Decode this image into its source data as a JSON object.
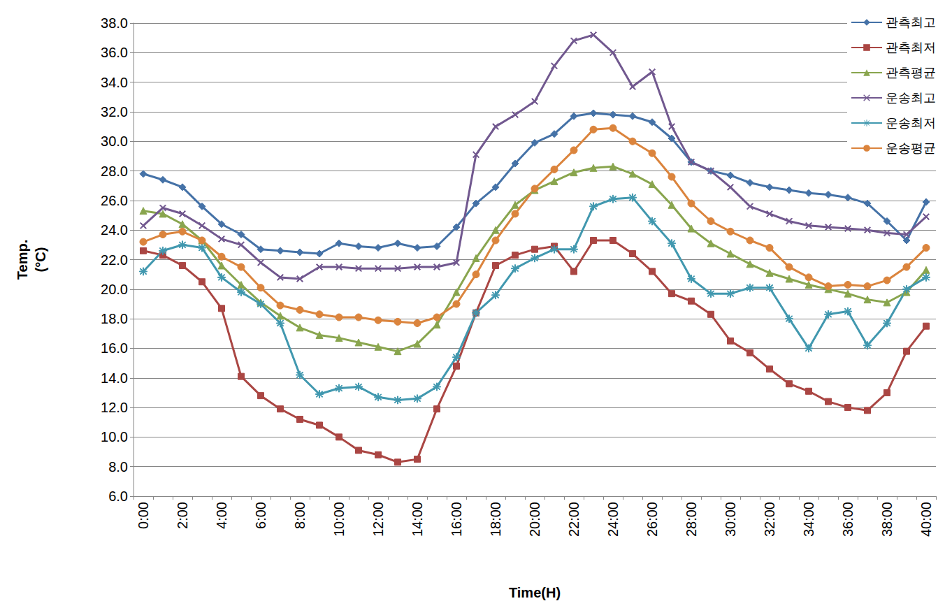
{
  "chart_data": {
    "type": "line",
    "x_label": "Time(H)",
    "y_label": "Temp.\n(°C)",
    "categories": [
      "0:00",
      null,
      "2:00",
      null,
      "4:00",
      null,
      "6:00",
      null,
      "8:00",
      null,
      "10:00",
      null,
      "12:00",
      null,
      "14:00",
      null,
      "16:00",
      null,
      "18:00",
      null,
      "20:00",
      null,
      "22:00",
      null,
      "24:00",
      null,
      "26:00",
      null,
      "28:00",
      null,
      "30:00",
      null,
      "32:00",
      null,
      "34:00",
      null,
      "36:00",
      null,
      "38:00",
      null,
      "40:00"
    ],
    "series": [
      {
        "name": "관측최고",
        "color": "#4572A7",
        "marker": "diamond",
        "values": [
          27.8,
          27.4,
          26.9,
          25.6,
          24.4,
          23.7,
          22.7,
          22.6,
          22.5,
          22.4,
          23.1,
          22.9,
          22.8,
          23.1,
          22.8,
          22.9,
          24.2,
          25.8,
          26.9,
          28.5,
          29.9,
          30.5,
          31.7,
          31.9,
          31.8,
          31.7,
          31.3,
          30.2,
          28.6,
          28.0,
          27.7,
          27.2,
          26.9,
          26.7,
          26.5,
          26.4,
          26.2,
          25.8,
          24.6,
          23.3,
          25.9
        ]
      },
      {
        "name": "관측최저",
        "color": "#AA4643",
        "marker": "square",
        "values": [
          22.6,
          22.3,
          21.6,
          20.5,
          18.7,
          14.1,
          12.8,
          11.9,
          11.2,
          10.8,
          10.0,
          9.1,
          8.8,
          8.3,
          8.5,
          11.9,
          14.8,
          18.4,
          21.6,
          22.3,
          22.7,
          22.9,
          21.2,
          23.3,
          23.3,
          22.4,
          21.2,
          19.7,
          19.2,
          18.3,
          16.5,
          15.7,
          14.6,
          13.6,
          13.1,
          12.4,
          12.0,
          11.8,
          13.0,
          15.8,
          17.5
        ]
      },
      {
        "name": "관측평균",
        "color": "#89A54E",
        "marker": "triangle",
        "values": [
          25.3,
          25.1,
          24.4,
          23.3,
          21.6,
          20.3,
          19.1,
          18.2,
          17.4,
          16.9,
          16.7,
          16.4,
          16.1,
          15.8,
          16.3,
          17.6,
          19.8,
          22.1,
          24.0,
          25.7,
          26.7,
          27.3,
          27.9,
          28.2,
          28.3,
          27.8,
          27.1,
          25.7,
          24.1,
          23.1,
          22.4,
          21.7,
          21.1,
          20.7,
          20.3,
          20.0,
          19.7,
          19.3,
          19.1,
          19.8,
          21.3
        ]
      },
      {
        "name": "운송최고",
        "color": "#71588F",
        "marker": "x",
        "values": [
          24.3,
          25.5,
          25.1,
          24.3,
          23.4,
          23.0,
          21.8,
          20.8,
          20.7,
          21.5,
          21.5,
          21.4,
          21.4,
          21.4,
          21.5,
          21.5,
          21.8,
          29.1,
          31.0,
          31.8,
          32.7,
          35.1,
          36.8,
          37.2,
          36.0,
          33.7,
          34.7,
          31.0,
          28.6,
          28.0,
          26.9,
          25.6,
          25.1,
          24.6,
          24.3,
          24.2,
          24.1,
          24.0,
          23.8,
          23.7,
          24.9
        ]
      },
      {
        "name": "운송최저",
        "color": "#4198AF",
        "marker": "star",
        "values": [
          21.2,
          22.6,
          23.0,
          22.8,
          20.8,
          19.8,
          19.0,
          17.7,
          14.2,
          12.9,
          13.3,
          13.4,
          12.7,
          12.5,
          12.6,
          13.4,
          15.4,
          18.4,
          19.6,
          21.4,
          22.1,
          22.7,
          22.7,
          25.6,
          26.1,
          26.2,
          24.6,
          23.1,
          20.7,
          19.7,
          19.7,
          20.1,
          20.1,
          18.0,
          16.0,
          18.3,
          18.5,
          16.2,
          17.7,
          20.0,
          20.8
        ]
      },
      {
        "name": "운송평균",
        "color": "#DB843D",
        "marker": "circle",
        "values": [
          23.2,
          23.7,
          23.9,
          23.3,
          22.2,
          21.5,
          20.1,
          18.9,
          18.6,
          18.3,
          18.1,
          18.1,
          17.9,
          17.8,
          17.7,
          18.1,
          19.0,
          21.0,
          23.3,
          25.1,
          26.8,
          28.1,
          29.4,
          30.8,
          30.9,
          30.0,
          29.2,
          27.6,
          25.8,
          24.6,
          23.9,
          23.3,
          22.8,
          21.5,
          20.8,
          20.2,
          20.3,
          20.2,
          20.6,
          21.5,
          22.8
        ]
      }
    ],
    "ylim": [
      6,
      38
    ],
    "yticks": [
      {
        "value": 6,
        "label": "6.0"
      },
      {
        "value": 8,
        "label": "8.0"
      },
      {
        "value": 10,
        "label": "10.0"
      },
      {
        "value": 12,
        "label": "12.0"
      },
      {
        "value": 14,
        "label": "14.0"
      },
      {
        "value": 16,
        "label": "16.0"
      },
      {
        "value": 18,
        "label": "18.0"
      },
      {
        "value": 20,
        "label": "20.0"
      },
      {
        "value": 22,
        "label": "22.0"
      },
      {
        "value": 24,
        "label": "24.0"
      },
      {
        "value": 26,
        "label": "26.0"
      },
      {
        "value": 28,
        "label": "28.0"
      },
      {
        "value": 30,
        "label": "30.0"
      },
      {
        "value": 32,
        "label": "32.0"
      },
      {
        "value": 34,
        "label": "34.0"
      },
      {
        "value": 36,
        "label": "36.0"
      },
      {
        "value": 38,
        "label": "38.0"
      }
    ],
    "grid": true,
    "legend": "top-right"
  }
}
